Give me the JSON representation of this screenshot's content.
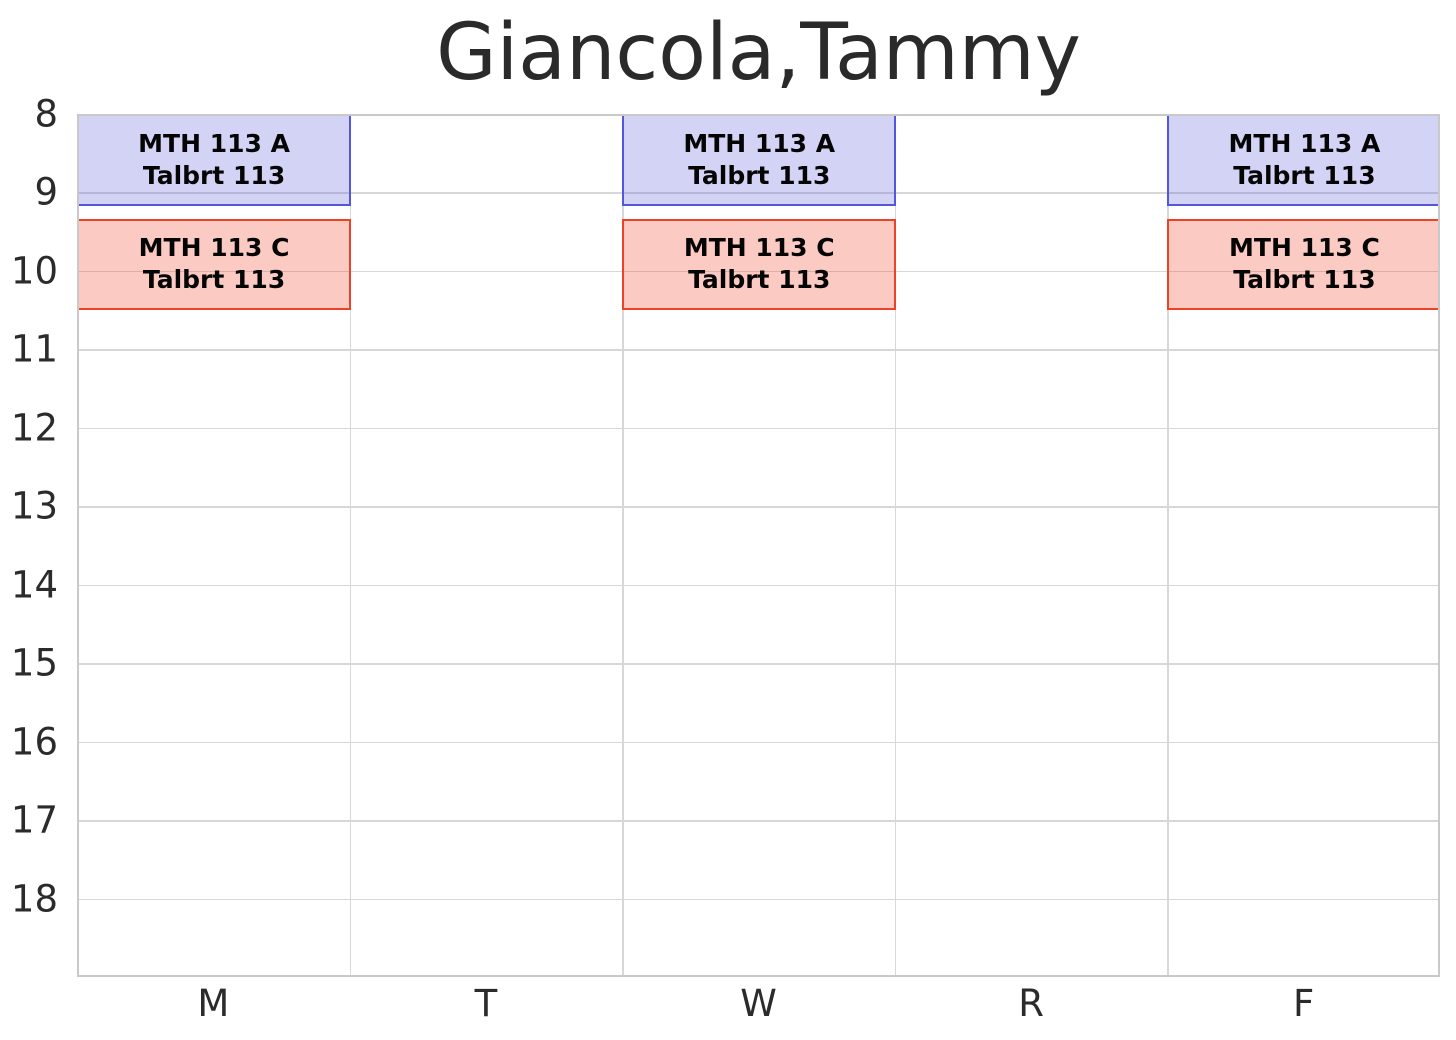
{
  "title": "Giancola,Tammy",
  "chart_data": {
    "type": "bar",
    "subtype": "weekly-schedule-gantt",
    "title": "Giancola,Tammy",
    "x_categories": [
      "M",
      "T",
      "W",
      "R",
      "F"
    ],
    "y_tick_labels": [
      "8",
      "9",
      "10",
      "11",
      "12",
      "13",
      "14",
      "15",
      "16",
      "17",
      "18"
    ],
    "y_range_hours": [
      8,
      19
    ],
    "grid": true,
    "legend": "none",
    "colors": {
      "grid_line": "#d7d7d7",
      "axis_border": "#c9c9c9",
      "blue_event_border": "#5456de",
      "blue_event_fill": "rgba(84,86,222,0.26)",
      "red_event_border": "#ee4226",
      "red_event_fill": "rgba(238,66,38,0.28)",
      "event_text": "#050505",
      "tick_text": "#2b2b2b",
      "title_text": "#2a2a2a"
    },
    "events": [
      {
        "day": "M",
        "start": 8.0,
        "end": 9.1667,
        "course": "MTH 113 A",
        "location": "Talbrt 113",
        "fill": "rgba(84,86,222,0.26)",
        "border": "#5456de"
      },
      {
        "day": "W",
        "start": 8.0,
        "end": 9.1667,
        "course": "MTH 113 A",
        "location": "Talbrt 113",
        "fill": "rgba(84,86,222,0.26)",
        "border": "#5456de"
      },
      {
        "day": "F",
        "start": 8.0,
        "end": 9.1667,
        "course": "MTH 113 A",
        "location": "Talbrt 113",
        "fill": "rgba(84,86,222,0.26)",
        "border": "#5456de"
      },
      {
        "day": "M",
        "start": 9.3333,
        "end": 10.5,
        "course": "MTH 113 C",
        "location": "Talbrt 113",
        "fill": "rgba(238,66,38,0.28)",
        "border": "#ee4226"
      },
      {
        "day": "W",
        "start": 9.3333,
        "end": 10.5,
        "course": "MTH 113 C",
        "location": "Talbrt 113",
        "fill": "rgba(238,66,38,0.28)",
        "border": "#ee4226"
      },
      {
        "day": "F",
        "start": 9.3333,
        "end": 10.5,
        "course": "MTH 113 C",
        "location": "Talbrt 113",
        "fill": "rgba(238,66,38,0.28)",
        "border": "#ee4226"
      }
    ]
  }
}
